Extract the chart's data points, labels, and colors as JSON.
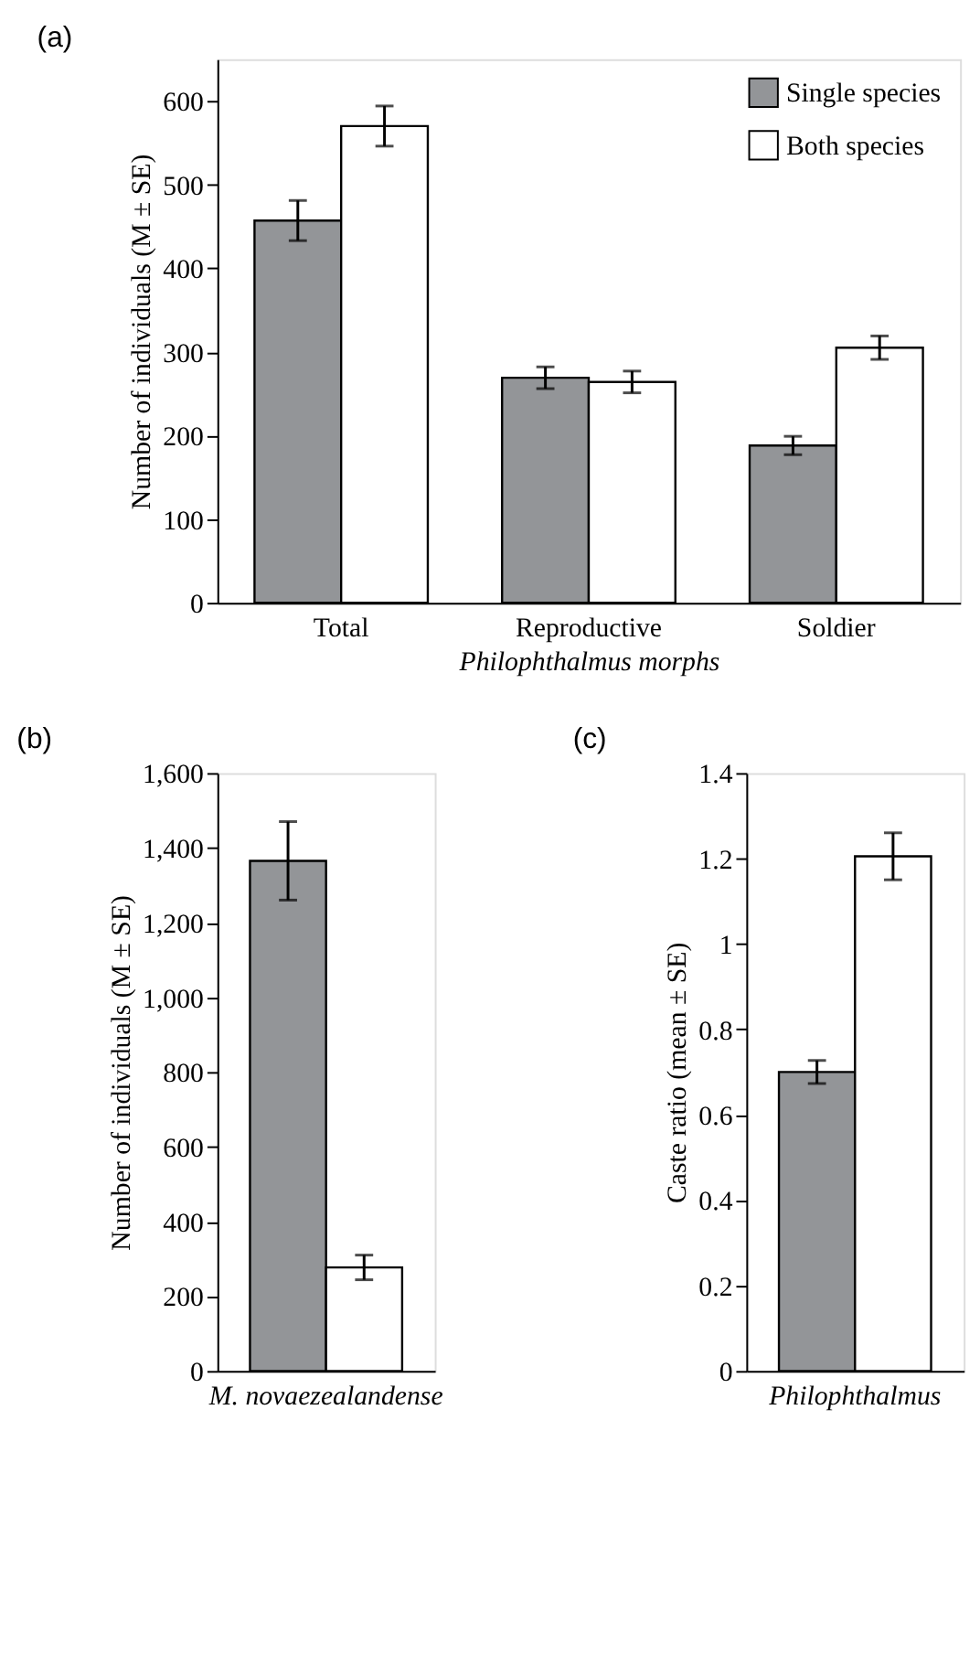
{
  "chart_data": [
    {
      "type": "bar",
      "title": "(a)",
      "xlabel": "Philophthalmus morphs",
      "ylabel": "Number of individuals (M ± SE)",
      "categories": [
        "Total",
        "Reproductive",
        "Soldier"
      ],
      "series": [
        {
          "name": "Single species",
          "color": "#939598",
          "values": [
            457,
            269,
            188
          ],
          "errors": [
            24,
            13,
            11
          ]
        },
        {
          "name": "Both species",
          "color": "#ffffff",
          "values": [
            570,
            264,
            305
          ],
          "errors": [
            24,
            13,
            14
          ]
        }
      ],
      "ylim": [
        0,
        650
      ],
      "yticks": [
        0,
        100,
        200,
        300,
        400,
        500,
        600
      ],
      "grid": false,
      "legend": "top right"
    },
    {
      "type": "bar",
      "title": "(b)",
      "ylabel": "Number of individuals (M ± SE)",
      "categories": [
        "M. novaezealandense"
      ],
      "series": [
        {
          "color": "#939598",
          "values": [
            1365
          ],
          "errors": [
            105
          ]
        },
        {
          "color": "#ffffff",
          "values": [
            277
          ],
          "errors": [
            33
          ]
        }
      ],
      "ylim": [
        0,
        1600
      ],
      "yticks": [
        0,
        {
          "value": 200,
          "label": "200"
        },
        {
          "value": 400,
          "label": "400"
        },
        {
          "value": 600,
          "label": "600"
        },
        {
          "value": 800,
          "label": "800"
        },
        {
          "value": 1000,
          "label": "1,000"
        },
        {
          "value": 1200,
          "label": "1,200"
        },
        {
          "value": 1400,
          "label": "1,400"
        },
        {
          "value": 1600,
          "label": "1,600"
        }
      ],
      "grid": false
    },
    {
      "type": "bar",
      "title": "(c)",
      "ylabel": "Caste ratio (mean ± SE)",
      "categories": [
        "Philophthalmus"
      ],
      "series": [
        {
          "color": "#939598",
          "values": [
            0.7
          ],
          "errors": [
            0.027
          ]
        },
        {
          "color": "#ffffff",
          "values": [
            1.205
          ],
          "errors": [
            0.055
          ]
        }
      ],
      "ylim": [
        0,
        1.4
      ],
      "yticks": [
        {
          "value": 0,
          "label": "0"
        },
        0.2,
        0.4,
        0.6,
        0.8,
        {
          "value": 1,
          "label": "1"
        },
        1.2,
        1.4
      ],
      "grid": false
    }
  ]
}
